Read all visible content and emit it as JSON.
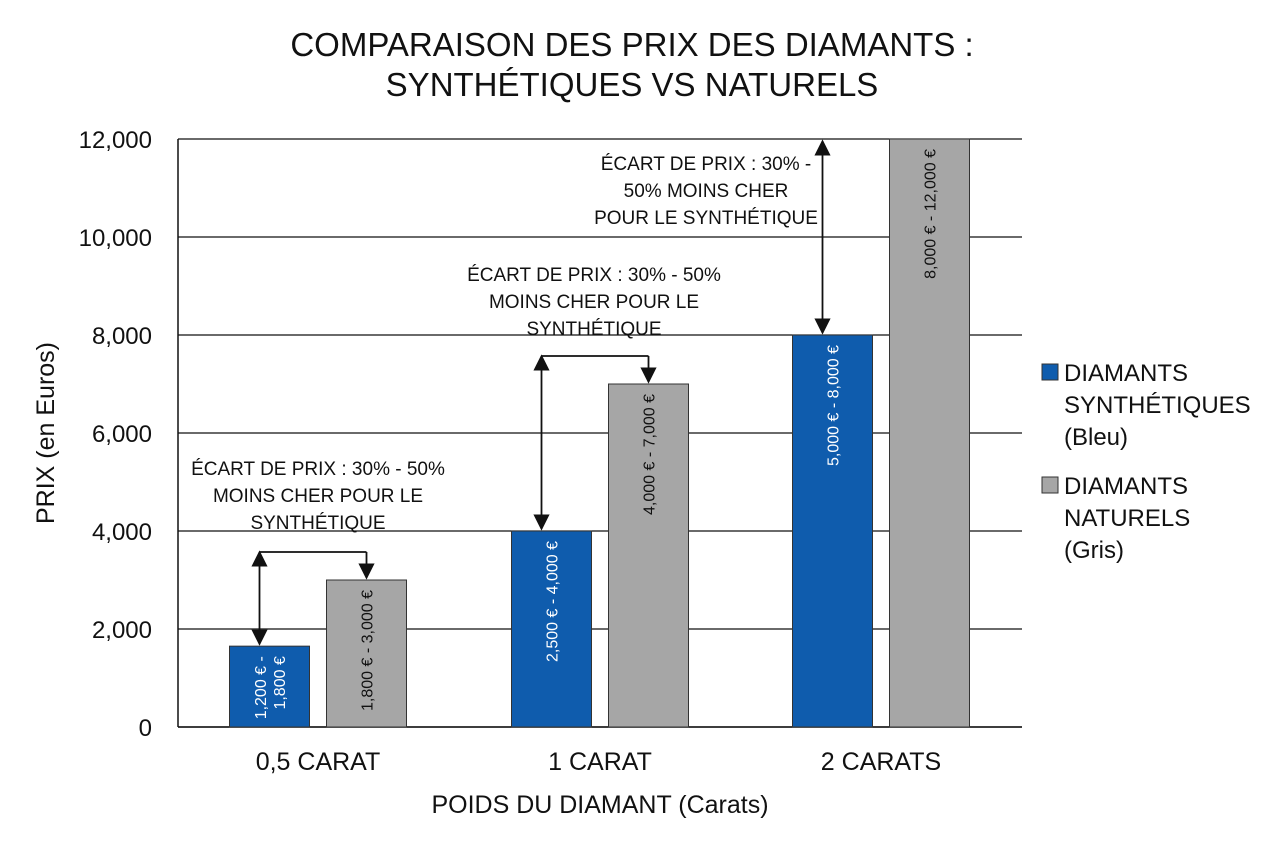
{
  "title_lines": [
    "COMPARAISON DES PRIX DES DIAMANTS :",
    "SYNTHÉTIQUES VS NATURELS"
  ],
  "chart_data": {
    "type": "bar",
    "title": "COMPARAISON DES PRIX DES DIAMANTS : SYNTHÉTIQUES VS NATURELS",
    "xlabel": "POIDS DU DIAMANT (Carats)",
    "ylabel": "PRIX (en Euros)",
    "ylim": [
      0,
      12000
    ],
    "yticks": [
      0,
      2000,
      4000,
      6000,
      8000,
      10000,
      12000
    ],
    "ytick_labels": [
      "0",
      "2,000",
      "4,000",
      "6,000",
      "8,000",
      "10,000",
      "12,000"
    ],
    "grid": true,
    "legend_position": "right",
    "categories": [
      "0,5 CARAT",
      "1 CARAT",
      "2 CARATS"
    ],
    "series": [
      {
        "name": "DIAMANTS SYNTHÉTIQUES (Bleu)",
        "legend_lines": [
          "DIAMANTS",
          "SYNTHÉTIQUES",
          "(Bleu)"
        ],
        "color": "#0f5cad",
        "label_color": "#ffffff",
        "values": [
          1650,
          4000,
          8000
        ],
        "labels": [
          [
            "1,200 € -",
            "1,800 €"
          ],
          [
            "2,500 € - 4,000 €"
          ],
          [
            "5,000 € - 8,000 €"
          ]
        ]
      },
      {
        "name": "DIAMANTS NATURELS (Gris)",
        "legend_lines": [
          "DIAMANTS",
          "NATURELS",
          "(Gris)"
        ],
        "color": "#a6a6a6",
        "label_color": "#111111",
        "values": [
          3000,
          7000,
          12000
        ],
        "labels": [
          [
            "1,800 € - 3,000 €"
          ],
          [
            "4,000 € - 7,000 €"
          ],
          [
            "8,000 € - 12,000 €"
          ]
        ]
      }
    ],
    "annotations": [
      {
        "category": 0,
        "lines": [
          "ÉCART DE PRIX : 30% - 50%",
          "MOINS CHER POUR LE",
          "SYNTHÉTIQUE"
        ]
      },
      {
        "category": 1,
        "lines": [
          "ÉCART DE PRIX : 30% - 50%",
          "MOINS CHER POUR LE",
          "SYNTHÉTIQUE"
        ]
      },
      {
        "category": 2,
        "lines": [
          "ÉCART DE PRIX : 30% -",
          "50% MOINS CHER",
          "POUR LE SYNTHÉTIQUE"
        ]
      }
    ]
  }
}
